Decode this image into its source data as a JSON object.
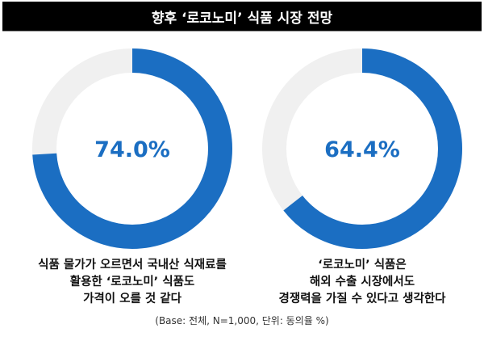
{
  "chart_data": [
    {
      "type": "pie",
      "subtype": "donut",
      "value": 74.0,
      "label": "74.0%",
      "caption": [
        "식품 물가가 오르면서 국내산 식재료를",
        "활용한 ‘로코노미’ 식품도",
        "가격이 오를 것 같다"
      ]
    },
    {
      "type": "pie",
      "subtype": "donut",
      "value": 64.4,
      "label": "64.4%",
      "caption": [
        "‘로코노미’ 식품은",
        "해외 수출 시장에서도",
        "경쟁력을 가질 수 있다고 생각한다"
      ]
    }
  ],
  "title": "향후 ‘로코노미’ 식품 시장 전망",
  "base_note": "(Base: 전체, N=1,000, 단위: 동의율 %)",
  "colors": {
    "accent": "#1b6ec2",
    "rest": "#f0f0f0",
    "label": "#1b6ec2"
  }
}
